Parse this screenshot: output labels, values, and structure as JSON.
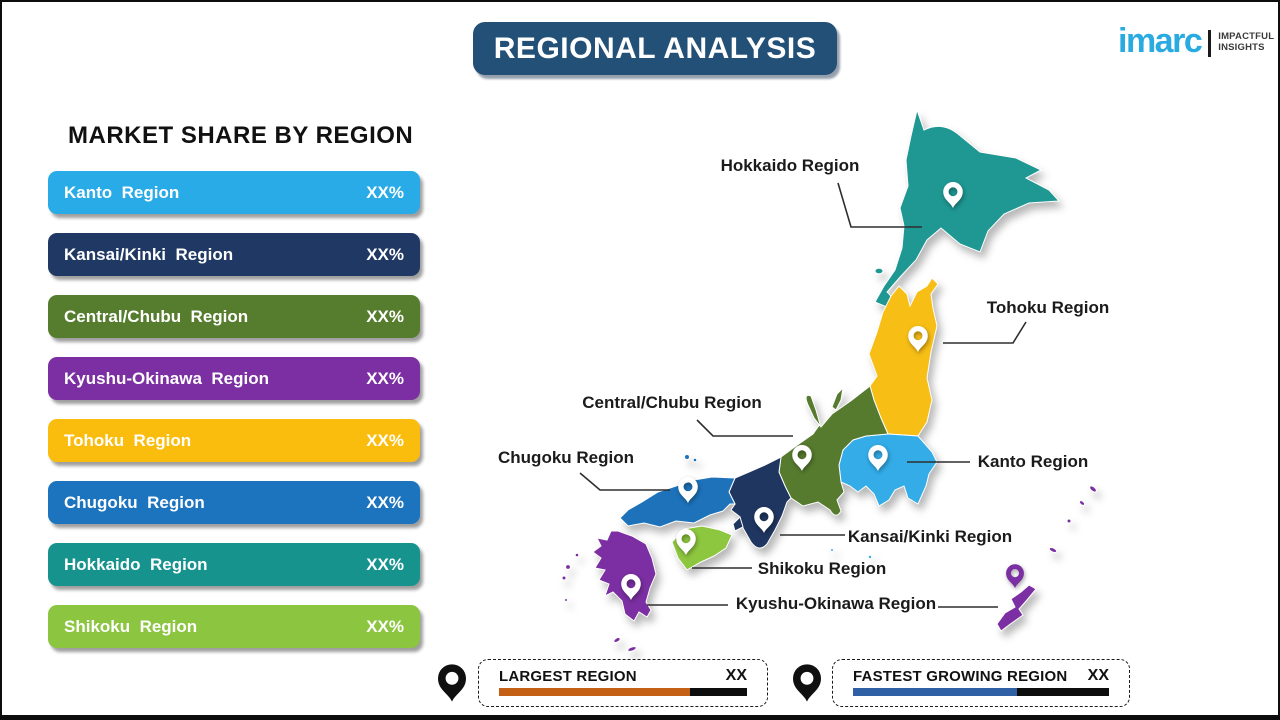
{
  "header": {
    "title": "REGIONAL ANALYSIS",
    "banner_color": "#235077"
  },
  "logo": {
    "name": "imarc",
    "brand_color": "#29abe2",
    "tagline_line1": "IMPACTFUL",
    "tagline_line2": "INSIGHTS"
  },
  "panel": {
    "heading": "MARKET SHARE BY REGION",
    "bars": [
      {
        "label": "Kanto  Region",
        "value": "XX%",
        "color": "#29abe8"
      },
      {
        "label": "Kansai/Kinki  Region",
        "value": "XX%",
        "color": "#203864"
      },
      {
        "label": "Central/Chubu  Region",
        "value": "XX%",
        "color": "#567c2e"
      },
      {
        "label": "Kyushu-Okinawa  Region",
        "value": "XX%",
        "color": "#7b2fa2"
      },
      {
        "label": "Tohoku  Region",
        "value": "XX%",
        "color": "#fbbd0d"
      },
      {
        "label": "Chugoku  Region",
        "value": "XX%",
        "color": "#1c73be"
      },
      {
        "label": "Hokkaido  Region",
        "value": "XX%",
        "color": "#17938e"
      },
      {
        "label": "Shikoku  Region",
        "value": "XX%",
        "color": "#8cc540"
      }
    ]
  },
  "map": {
    "pin_color": "#ffffff",
    "okinawa_pin_color": "#7b2fa2",
    "region_colors": {
      "hokkaido": "#1f9792",
      "tohoku": "#f7be16",
      "kanto": "#33ace8",
      "chubu": "#567b2e",
      "kansai": "#1f3660",
      "chugoku": "#1d72ba",
      "shikoku": "#8dc63f",
      "kyushu": "#7b2fa2"
    },
    "labels": [
      {
        "id": "hokkaido",
        "text": "Hokkaido Region"
      },
      {
        "id": "tohoku",
        "text": "Tohoku Region"
      },
      {
        "id": "kanto",
        "text": "Kanto Region"
      },
      {
        "id": "central-chubu",
        "text": "Central/Chubu Region"
      },
      {
        "id": "chugoku",
        "text": "Chugoku Region"
      },
      {
        "id": "kansai-kinki",
        "text": "Kansai/Kinki Region"
      },
      {
        "id": "shikoku",
        "text": "Shikoku Region"
      },
      {
        "id": "kyushu-okinawa",
        "text": "Kyushu-Okinawa Region"
      }
    ]
  },
  "legend": {
    "pin_color": "#101010",
    "largest": {
      "label": "LARGEST REGION",
      "value": "XX",
      "bar_color": "#c45f16",
      "track_color": "#0d0d0d",
      "bar_fill_ratio": 0.77
    },
    "fastest": {
      "label": "FASTEST GROWING REGION",
      "value": "XX",
      "bar_color": "#2f5fa5",
      "track_color": "#0d0d0d",
      "bar_fill_ratio": 0.64
    }
  }
}
